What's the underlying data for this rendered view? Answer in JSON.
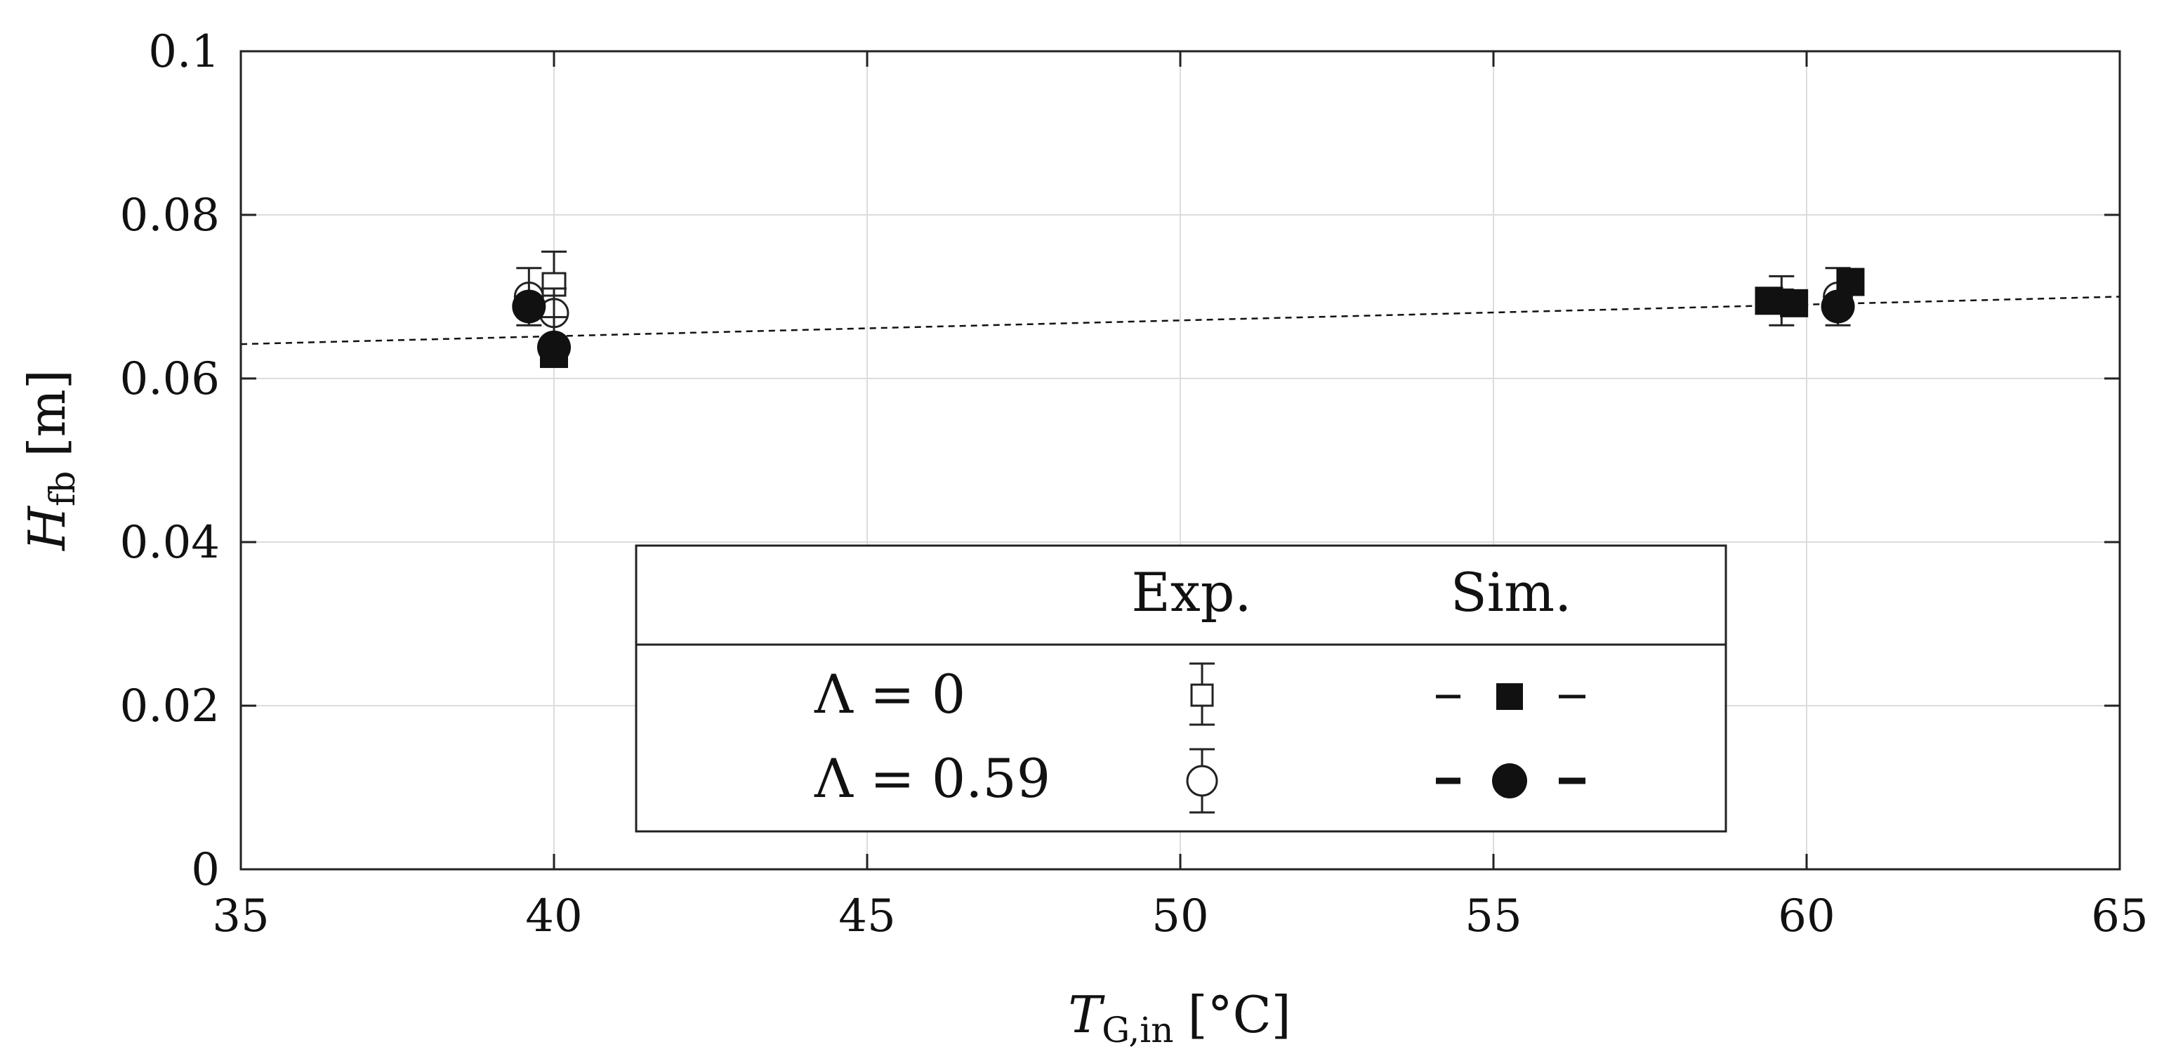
{
  "chart_data": {
    "type": "scatter",
    "title": "",
    "xlabel": {
      "main": "T",
      "sub": "G,in",
      "unit": "[°C]"
    },
    "ylabel": {
      "main": "H",
      "sub": "fb",
      "unit": "[m]"
    },
    "xlim": [
      35,
      65
    ],
    "ylim": [
      0,
      0.1
    ],
    "x_ticks": [
      "35",
      "40",
      "45",
      "50",
      "55",
      "60",
      "65"
    ],
    "y_ticks": [
      "0",
      "0.02",
      "0.04",
      "0.06",
      "0.08",
      "0.1"
    ],
    "grid": true,
    "legend": {
      "position": "bottom-center",
      "header_exp": "Exp.",
      "header_sim": "Sim.",
      "row1_label": "Λ = 0",
      "row2_label": "Λ = 0.59"
    },
    "series": [
      {
        "name": "Λ = 0 Exp.",
        "marker": "open-square",
        "errorbars": true,
        "points": [
          {
            "x": 40.0,
            "y": 0.0715,
            "err": 0.004
          },
          {
            "x": 59.6,
            "y": 0.0695,
            "err": 0.003
          }
        ]
      },
      {
        "name": "Λ = 0.59 Exp.",
        "marker": "open-circle",
        "errorbars": true,
        "points": [
          {
            "x": 39.6,
            "y": 0.07,
            "err": 0.0035
          },
          {
            "x": 40.0,
            "y": 0.068,
            "err": 0.003
          },
          {
            "x": 60.5,
            "y": 0.07,
            "err": 0.0035
          }
        ]
      },
      {
        "name": "Λ = 0 Sim.",
        "marker": "filled-square",
        "points": [
          {
            "x": 40.0,
            "y": 0.063
          },
          {
            "x": 59.4,
            "y": 0.0695
          },
          {
            "x": 59.8,
            "y": 0.0692
          },
          {
            "x": 60.7,
            "y": 0.0718
          }
        ]
      },
      {
        "name": "Λ = 0.59 Sim.",
        "marker": "filled-circle",
        "points": [
          {
            "x": 39.6,
            "y": 0.0688
          },
          {
            "x": 40.0,
            "y": 0.0638
          },
          {
            "x": 60.5,
            "y": 0.0688
          }
        ]
      }
    ],
    "trend_line": {
      "style": "dashed",
      "x": [
        35,
        65
      ],
      "y": [
        0.0642,
        0.07
      ]
    }
  }
}
